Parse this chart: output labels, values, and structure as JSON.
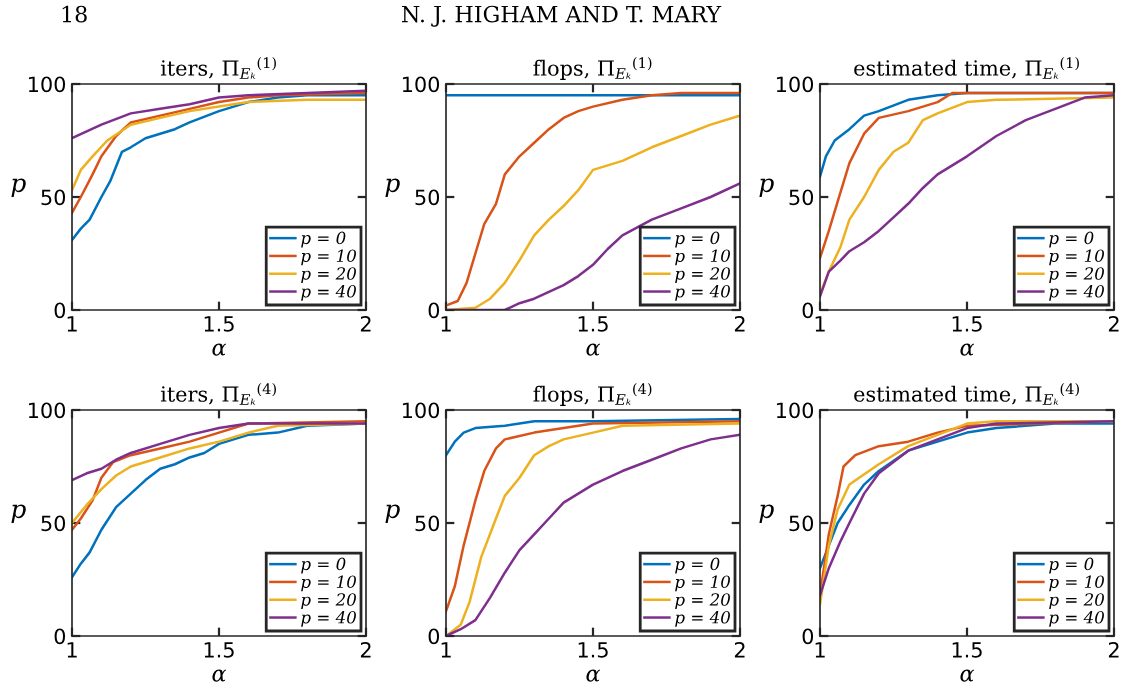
{
  "chart_data": [
    {
      "type": "line",
      "title": "iters, Π$_{Eₖ}$$^{(1)}$",
      "xlabel": "α",
      "ylabel": "p",
      "xlim": [
        1,
        2
      ],
      "xticks": [
        1,
        1.5,
        2
      ],
      "ylim": [
        0,
        100
      ],
      "yticks": [
        0,
        50,
        100
      ],
      "legend": "bottom right",
      "grid": false,
      "annotations": [
        "18",
        "N. J. HIGHAM AND T. MARY"
      ],
      "series": [
        {
          "name": "p = 0",
          "color": "#0072bd",
          "x": [
            1,
            1.03,
            1.06,
            1.1,
            1.13,
            1.17,
            1.2,
            1.25,
            1.3,
            1.35,
            1.4,
            1.5,
            1.6,
            1.7,
            1.8,
            2
          ],
          "values": [
            31,
            36,
            40,
            50,
            57,
            70,
            72,
            76,
            78,
            80,
            83,
            88,
            92,
            94,
            95,
            95
          ]
        },
        {
          "name": "p = 10",
          "color": "#d95319",
          "x": [
            1,
            1.03,
            1.07,
            1.1,
            1.15,
            1.2,
            1.3,
            1.4,
            1.5,
            1.6,
            1.7,
            2
          ],
          "values": [
            43,
            50,
            60,
            68,
            77,
            83,
            86,
            89,
            92,
            94,
            95,
            96
          ]
        },
        {
          "name": "p = 20",
          "color": "#edb120",
          "x": [
            1,
            1.03,
            1.07,
            1.12,
            1.2,
            1.3,
            1.4,
            1.5,
            1.6,
            1.8,
            2
          ],
          "values": [
            53,
            62,
            68,
            75,
            82,
            85,
            88,
            90,
            92,
            93,
            93
          ]
        },
        {
          "name": "p = 40",
          "color": "#7e2f8e",
          "x": [
            1,
            1.05,
            1.1,
            1.2,
            1.3,
            1.4,
            1.5,
            1.6,
            1.8,
            2
          ],
          "values": [
            76,
            79,
            82,
            87,
            89,
            91,
            94,
            95,
            96,
            97
          ]
        }
      ]
    },
    {
      "type": "line",
      "title": "flops, Π$_{Eₖ}$$^{(1)}$",
      "xlabel": "α",
      "ylabel": "p",
      "xlim": [
        1,
        2
      ],
      "xticks": [
        1,
        1.5,
        2
      ],
      "ylim": [
        0,
        100
      ],
      "yticks": [
        0,
        50,
        100
      ],
      "legend": "bottom right",
      "grid": false,
      "series": [
        {
          "name": "p = 0",
          "color": "#0072bd",
          "x": [
            1,
            1.5,
            2
          ],
          "values": [
            95,
            95,
            95
          ]
        },
        {
          "name": "p = 10",
          "color": "#d95319",
          "x": [
            1,
            1.04,
            1.07,
            1.1,
            1.13,
            1.17,
            1.2,
            1.25,
            1.3,
            1.35,
            1.4,
            1.45,
            1.5,
            1.6,
            1.7,
            1.8,
            2
          ],
          "values": [
            2,
            4,
            12,
            25,
            38,
            47,
            60,
            68,
            74,
            80,
            85,
            88,
            90,
            93,
            95,
            96,
            96
          ]
        },
        {
          "name": "p = 20",
          "color": "#edb120",
          "x": [
            1,
            1.1,
            1.15,
            1.2,
            1.25,
            1.3,
            1.35,
            1.4,
            1.45,
            1.5,
            1.6,
            1.7,
            1.8,
            1.9,
            2
          ],
          "values": [
            0,
            1,
            5,
            12,
            22,
            33,
            40,
            46,
            53,
            62,
            66,
            72,
            77,
            82,
            86
          ]
        },
        {
          "name": "p = 40",
          "color": "#7e2f8e",
          "x": [
            1,
            1.2,
            1.25,
            1.3,
            1.35,
            1.4,
            1.45,
            1.5,
            1.55,
            1.6,
            1.7,
            1.8,
            1.9,
            2
          ],
          "values": [
            0,
            0,
            3,
            5,
            8,
            11,
            15,
            20,
            27,
            33,
            40,
            45,
            50,
            56
          ]
        }
      ]
    },
    {
      "type": "line",
      "title": "estimated time, Π$_{Eₖ}$$^{(1)}$",
      "xlabel": "α",
      "ylabel": "p",
      "xlim": [
        1,
        2
      ],
      "xticks": [
        1,
        1.5,
        2
      ],
      "ylim": [
        0,
        100
      ],
      "yticks": [
        0,
        50,
        100
      ],
      "legend": "bottom right",
      "grid": false,
      "series": [
        {
          "name": "p = 0",
          "color": "#0072bd",
          "x": [
            1,
            1.02,
            1.05,
            1.1,
            1.15,
            1.2,
            1.3,
            1.4,
            1.5,
            2
          ],
          "values": [
            59,
            68,
            75,
            80,
            86,
            88,
            93,
            95,
            96,
            96
          ]
        },
        {
          "name": "p = 10",
          "color": "#d95319",
          "x": [
            1,
            1.03,
            1.06,
            1.1,
            1.15,
            1.2,
            1.3,
            1.4,
            1.45,
            2
          ],
          "values": [
            23,
            35,
            48,
            65,
            78,
            85,
            88,
            92,
            96,
            96
          ]
        },
        {
          "name": "p = 20",
          "color": "#edb120",
          "x": [
            1,
            1.03,
            1.07,
            1.1,
            1.15,
            1.2,
            1.25,
            1.3,
            1.35,
            1.4,
            1.5,
            1.6,
            2
          ],
          "values": [
            7,
            17,
            28,
            40,
            50,
            62,
            70,
            74,
            84,
            87,
            92,
            93,
            94
          ]
        },
        {
          "name": "p = 40",
          "color": "#7e2f8e",
          "x": [
            1,
            1.03,
            1.07,
            1.1,
            1.15,
            1.2,
            1.25,
            1.3,
            1.35,
            1.4,
            1.5,
            1.6,
            1.7,
            1.8,
            1.9,
            2
          ],
          "values": [
            6,
            17,
            22,
            26,
            30,
            35,
            41,
            47,
            54,
            60,
            68,
            77,
            84,
            89,
            94,
            95
          ]
        }
      ]
    },
    {
      "type": "line",
      "title": "iters, Π$_{Eₖ}$$^{(4)}$",
      "xlabel": "α",
      "ylabel": "p",
      "xlim": [
        1,
        2
      ],
      "xticks": [
        1,
        1.5,
        2
      ],
      "ylim": [
        0,
        100
      ],
      "yticks": [
        0,
        50,
        100
      ],
      "legend": "bottom right",
      "grid": false,
      "series": [
        {
          "name": "p = 0",
          "color": "#0072bd",
          "x": [
            1,
            1.03,
            1.06,
            1.1,
            1.15,
            1.2,
            1.25,
            1.3,
            1.35,
            1.4,
            1.45,
            1.5,
            1.6,
            1.7,
            1.8,
            2
          ],
          "values": [
            26,
            32,
            37,
            47,
            57,
            63,
            69,
            74,
            76,
            79,
            81,
            85,
            89,
            90,
            93,
            94
          ]
        },
        {
          "name": "p = 10",
          "color": "#d95319",
          "x": [
            1,
            1.03,
            1.07,
            1.1,
            1.14,
            1.2,
            1.3,
            1.4,
            1.5,
            1.6,
            2
          ],
          "values": [
            47,
            52,
            60,
            70,
            77,
            80,
            83,
            86,
            90,
            94,
            95
          ]
        },
        {
          "name": "p = 20",
          "color": "#edb120",
          "x": [
            1,
            1.05,
            1.1,
            1.15,
            1.2,
            1.3,
            1.4,
            1.5,
            1.6,
            1.7,
            2
          ],
          "values": [
            50,
            58,
            65,
            71,
            75,
            79,
            83,
            86,
            90,
            93,
            94
          ]
        },
        {
          "name": "p = 40",
          "color": "#7e2f8e",
          "x": [
            1,
            1.05,
            1.1,
            1.15,
            1.2,
            1.3,
            1.4,
            1.5,
            1.6,
            2
          ],
          "values": [
            69,
            72,
            74,
            78,
            81,
            85,
            89,
            92,
            94,
            94
          ]
        }
      ]
    },
    {
      "type": "line",
      "title": "flops, Π$_{Eₖ}$$^{(4)}$",
      "xlabel": "α",
      "ylabel": "p",
      "xlim": [
        1,
        2
      ],
      "xticks": [
        1,
        1.5,
        2
      ],
      "ylim": [
        0,
        100
      ],
      "yticks": [
        0,
        50,
        100
      ],
      "legend": "bottom right",
      "grid": false,
      "series": [
        {
          "name": "p = 0",
          "color": "#0072bd",
          "x": [
            1,
            1.03,
            1.06,
            1.1,
            1.2,
            1.3,
            1.5,
            2
          ],
          "values": [
            80,
            86,
            90,
            92,
            93,
            95,
            95,
            96
          ]
        },
        {
          "name": "p = 10",
          "color": "#d95319",
          "x": [
            1,
            1.03,
            1.06,
            1.1,
            1.13,
            1.17,
            1.2,
            1.3,
            1.4,
            1.5,
            2
          ],
          "values": [
            11,
            22,
            40,
            60,
            73,
            83,
            87,
            90,
            92,
            94,
            95
          ]
        },
        {
          "name": "p = 20",
          "color": "#edb120",
          "x": [
            1,
            1.05,
            1.08,
            1.12,
            1.17,
            1.2,
            1.25,
            1.3,
            1.35,
            1.4,
            1.5,
            1.6,
            2
          ],
          "values": [
            0,
            5,
            15,
            35,
            52,
            62,
            70,
            80,
            84,
            87,
            90,
            93,
            94
          ]
        },
        {
          "name": "p = 40",
          "color": "#7e2f8e",
          "x": [
            1,
            1.05,
            1.1,
            1.15,
            1.2,
            1.25,
            1.3,
            1.35,
            1.4,
            1.5,
            1.6,
            1.7,
            1.8,
            1.9,
            2
          ],
          "values": [
            0,
            3,
            7,
            17,
            28,
            38,
            45,
            52,
            59,
            67,
            73,
            78,
            83,
            87,
            89
          ]
        }
      ]
    },
    {
      "type": "line",
      "title": "estimated time, Π$_{Eₖ}$$^{(4)}$",
      "xlabel": "α",
      "ylabel": "p",
      "xlim": [
        1,
        2
      ],
      "xticks": [
        1,
        1.5,
        2
      ],
      "ylim": [
        0,
        100
      ],
      "yticks": [
        0,
        50,
        100
      ],
      "legend": "bottom right",
      "grid": false,
      "series": [
        {
          "name": "p = 0",
          "color": "#0072bd",
          "x": [
            1,
            1.03,
            1.06,
            1.1,
            1.15,
            1.2,
            1.3,
            1.4,
            1.5,
            1.6,
            1.8,
            2
          ],
          "values": [
            30,
            40,
            50,
            58,
            67,
            73,
            82,
            86,
            90,
            92,
            94,
            94
          ]
        },
        {
          "name": "p = 10",
          "color": "#d95319",
          "x": [
            1,
            1.03,
            1.06,
            1.08,
            1.12,
            1.2,
            1.3,
            1.4,
            1.5,
            2
          ],
          "values": [
            18,
            45,
            62,
            75,
            80,
            84,
            86,
            90,
            93,
            95
          ]
        },
        {
          "name": "p = 20",
          "color": "#edb120",
          "x": [
            1,
            1.03,
            1.06,
            1.1,
            1.2,
            1.3,
            1.4,
            1.5,
            1.6,
            2
          ],
          "values": [
            14,
            40,
            56,
            67,
            76,
            84,
            89,
            94,
            95,
            95
          ]
        },
        {
          "name": "p = 40",
          "color": "#7e2f8e",
          "x": [
            1,
            1.03,
            1.07,
            1.1,
            1.15,
            1.2,
            1.3,
            1.4,
            1.5,
            1.6,
            2
          ],
          "values": [
            18,
            30,
            42,
            50,
            63,
            72,
            82,
            87,
            92,
            94,
            95
          ]
        }
      ]
    }
  ]
}
